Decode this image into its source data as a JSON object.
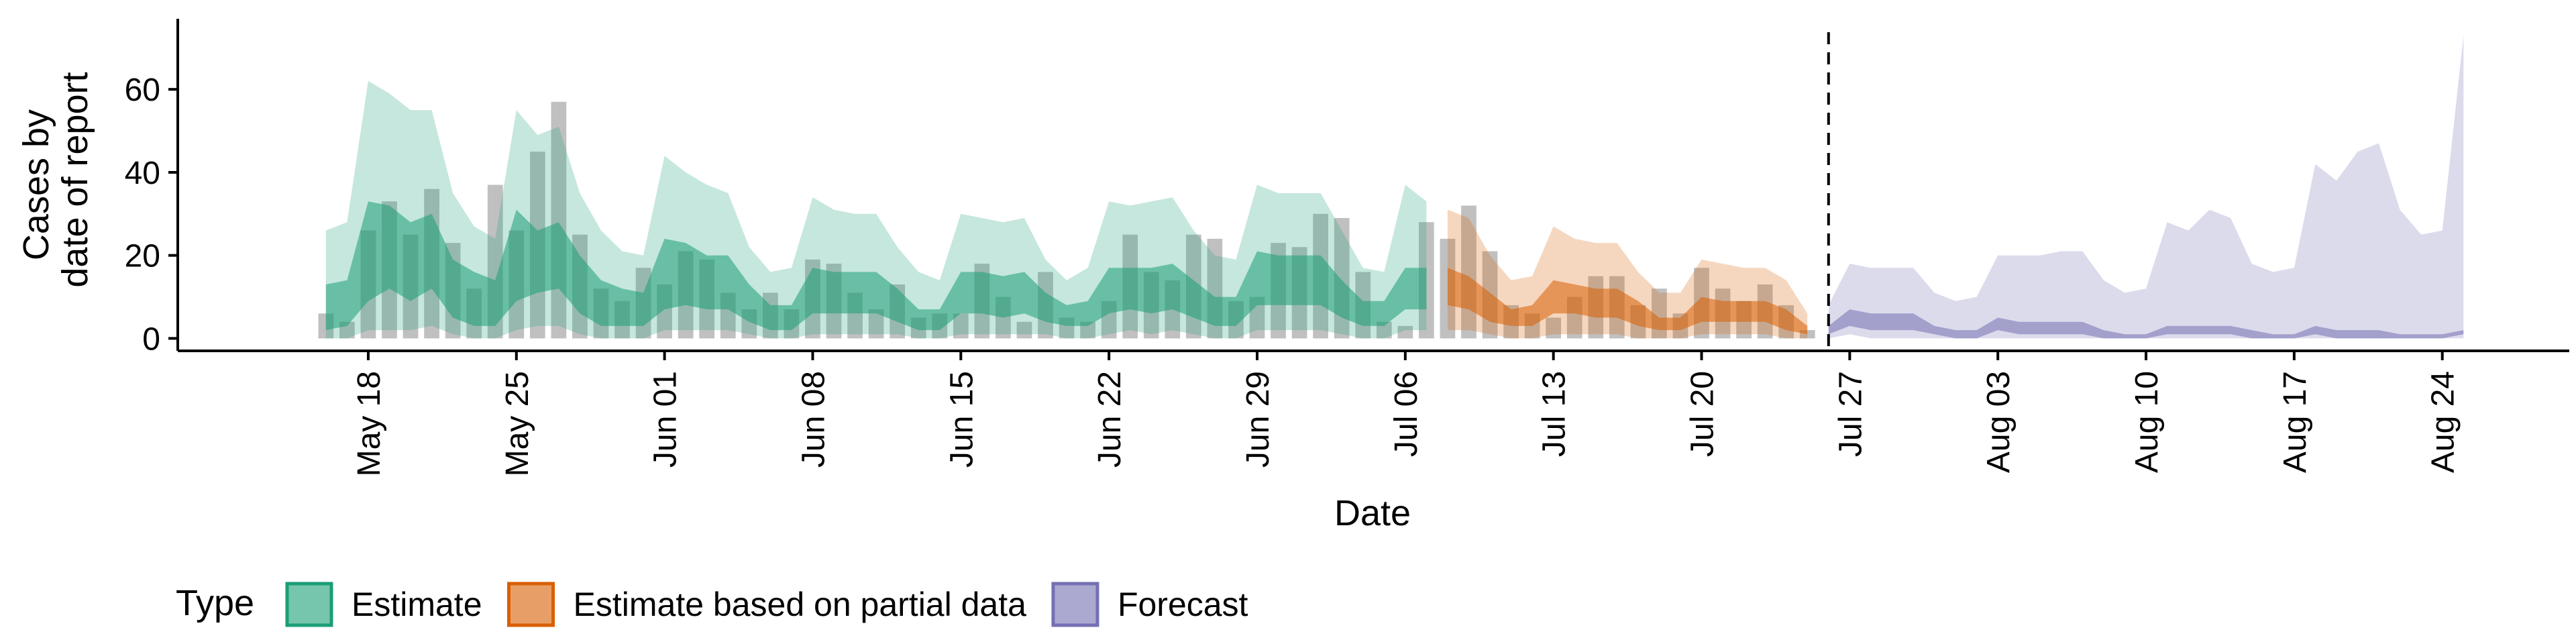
{
  "chart_data": {
    "type": "area",
    "xlabel": "Date",
    "ylabel_lines": [
      "Cases by",
      "date of report"
    ],
    "ylim": [
      -3,
      77
    ],
    "xlim": [
      "2020-05-09",
      "2020-08-30"
    ],
    "y_ticks": [
      0,
      20,
      40,
      60
    ],
    "x_ticks": [
      {
        "date": "2020-05-18",
        "label": "May 18"
      },
      {
        "date": "2020-05-25",
        "label": "May 25"
      },
      {
        "date": "2020-06-01",
        "label": "Jun 01"
      },
      {
        "date": "2020-06-08",
        "label": "Jun 08"
      },
      {
        "date": "2020-06-15",
        "label": "Jun 15"
      },
      {
        "date": "2020-06-22",
        "label": "Jun 22"
      },
      {
        "date": "2020-06-29",
        "label": "Jun 29"
      },
      {
        "date": "2020-07-06",
        "label": "Jul 06"
      },
      {
        "date": "2020-07-13",
        "label": "Jul 13"
      },
      {
        "date": "2020-07-20",
        "label": "Jul 20"
      },
      {
        "date": "2020-07-27",
        "label": "Jul 27"
      },
      {
        "date": "2020-08-03",
        "label": "Aug 03"
      },
      {
        "date": "2020-08-10",
        "label": "Aug 10"
      },
      {
        "date": "2020-08-17",
        "label": "Aug 17"
      },
      {
        "date": "2020-08-24",
        "label": "Aug 24"
      }
    ],
    "forecast_line_date": "2020-07-26",
    "colors": {
      "Estimate": "#1b9e77",
      "Estimate based on partial data": "#d95f02",
      "Forecast": "#7570b3",
      "bars": "#8c8c8c",
      "axis": "#000000"
    },
    "legend": {
      "title": "Type",
      "position": "bottom",
      "items": [
        "Estimate",
        "Estimate based on partial data",
        "Forecast"
      ]
    },
    "reported_cases": {
      "start": "2020-05-16",
      "values": [
        6,
        4,
        26,
        33,
        25,
        36,
        23,
        12,
        37,
        26,
        45,
        57,
        25,
        12,
        9,
        17,
        13,
        21,
        19,
        11,
        7,
        11,
        7,
        19,
        18,
        11,
        7,
        13,
        5,
        6,
        6,
        18,
        10,
        4,
        16,
        5,
        4,
        9,
        25,
        16,
        14,
        25,
        24,
        9,
        10,
        23,
        22,
        30,
        29,
        16,
        4,
        3,
        28,
        24,
        32,
        21,
        8,
        6,
        5,
        10,
        15,
        15,
        8,
        12,
        6,
        17,
        12,
        9,
        13,
        8,
        2
      ]
    },
    "series": [
      {
        "name": "Estimate",
        "start": "2020-05-16",
        "outer_upper": [
          26,
          28,
          62,
          59,
          55,
          55,
          35,
          27,
          24,
          55,
          49,
          51,
          35,
          26,
          21,
          20,
          44,
          40,
          37,
          35,
          22,
          16,
          17,
          34,
          31,
          30,
          30,
          22,
          16,
          14,
          30,
          29,
          28,
          29,
          19,
          14,
          17,
          33,
          32,
          33,
          34,
          26,
          20,
          19,
          37,
          35,
          35,
          35,
          26,
          17,
          16,
          37,
          33
        ],
        "inner_upper": [
          13,
          14,
          33,
          32,
          28,
          30,
          19,
          16,
          14,
          31,
          26,
          28,
          20,
          14,
          12,
          11,
          24,
          23,
          20,
          20,
          13,
          8,
          8,
          17,
          16,
          16,
          16,
          12,
          7,
          7,
          16,
          16,
          15,
          16,
          11,
          8,
          9,
          17,
          17,
          17,
          18,
          14,
          10,
          10,
          21,
          20,
          20,
          20,
          14,
          9,
          9,
          17,
          17
        ],
        "inner_lower": [
          2,
          3,
          9,
          12,
          9,
          12,
          5,
          3,
          3,
          9,
          11,
          12,
          6,
          3,
          3,
          3,
          7,
          8,
          7,
          7,
          4,
          2,
          2,
          6,
          6,
          6,
          6,
          4,
          2,
          2,
          6,
          6,
          5,
          6,
          4,
          3,
          3,
          6,
          7,
          6,
          7,
          5,
          3,
          3,
          8,
          8,
          8,
          8,
          5,
          3,
          3,
          7,
          7
        ],
        "outer_lower": [
          0,
          0,
          2,
          2,
          2,
          3,
          1,
          0,
          0,
          2,
          3,
          3,
          1,
          0,
          0,
          0,
          2,
          2,
          2,
          2,
          1,
          0,
          0,
          1,
          1,
          1,
          1,
          1,
          0,
          0,
          1,
          1,
          1,
          1,
          1,
          0,
          0,
          1,
          2,
          1,
          2,
          1,
          0,
          0,
          2,
          2,
          2,
          2,
          1,
          0,
          0,
          2,
          2
        ]
      },
      {
        "name": "Estimate based on partial data",
        "start": "2020-07-08",
        "outer_upper": [
          31,
          29,
          20,
          14,
          15,
          27,
          24,
          23,
          23,
          16,
          11,
          11,
          19,
          18,
          17,
          17,
          14,
          6
        ],
        "inner_upper": [
          17,
          15,
          11,
          7,
          8,
          14,
          13,
          12,
          12,
          9,
          5,
          5,
          10,
          9,
          9,
          9,
          7,
          3
        ],
        "inner_lower": [
          8,
          7,
          4,
          3,
          3,
          6,
          6,
          5,
          5,
          3,
          2,
          2,
          4,
          4,
          4,
          4,
          2,
          1
        ],
        "outer_lower": [
          2,
          2,
          1,
          0,
          0,
          1,
          1,
          1,
          1,
          0,
          0,
          0,
          1,
          1,
          1,
          1,
          0,
          0
        ]
      },
      {
        "name": "Forecast",
        "start": "2020-07-26",
        "outer_upper": [
          8,
          18,
          17,
          17,
          17,
          11,
          9,
          10,
          20,
          20,
          20,
          21,
          21,
          14,
          11,
          12,
          28,
          26,
          31,
          29,
          18,
          16,
          17,
          42,
          38,
          45,
          47,
          31,
          25,
          26,
          73
        ],
        "inner_upper": [
          3,
          7,
          6,
          6,
          6,
          3,
          2,
          2,
          5,
          4,
          4,
          4,
          4,
          2,
          1,
          1,
          3,
          3,
          3,
          3,
          2,
          1,
          1,
          3,
          2,
          2,
          2,
          1,
          1,
          1,
          2
        ],
        "inner_lower": [
          1,
          3,
          2,
          2,
          2,
          1,
          0,
          0,
          2,
          1,
          1,
          1,
          1,
          0,
          0,
          0,
          1,
          1,
          1,
          1,
          0,
          0,
          0,
          1,
          0,
          0,
          0,
          0,
          0,
          0,
          1
        ],
        "outer_lower": [
          0,
          1,
          0,
          0,
          0,
          0,
          0,
          0,
          0,
          0,
          0,
          0,
          0,
          0,
          0,
          0,
          0,
          0,
          0,
          0,
          0,
          0,
          0,
          0,
          0,
          0,
          0,
          0,
          0,
          0,
          0
        ]
      }
    ]
  }
}
